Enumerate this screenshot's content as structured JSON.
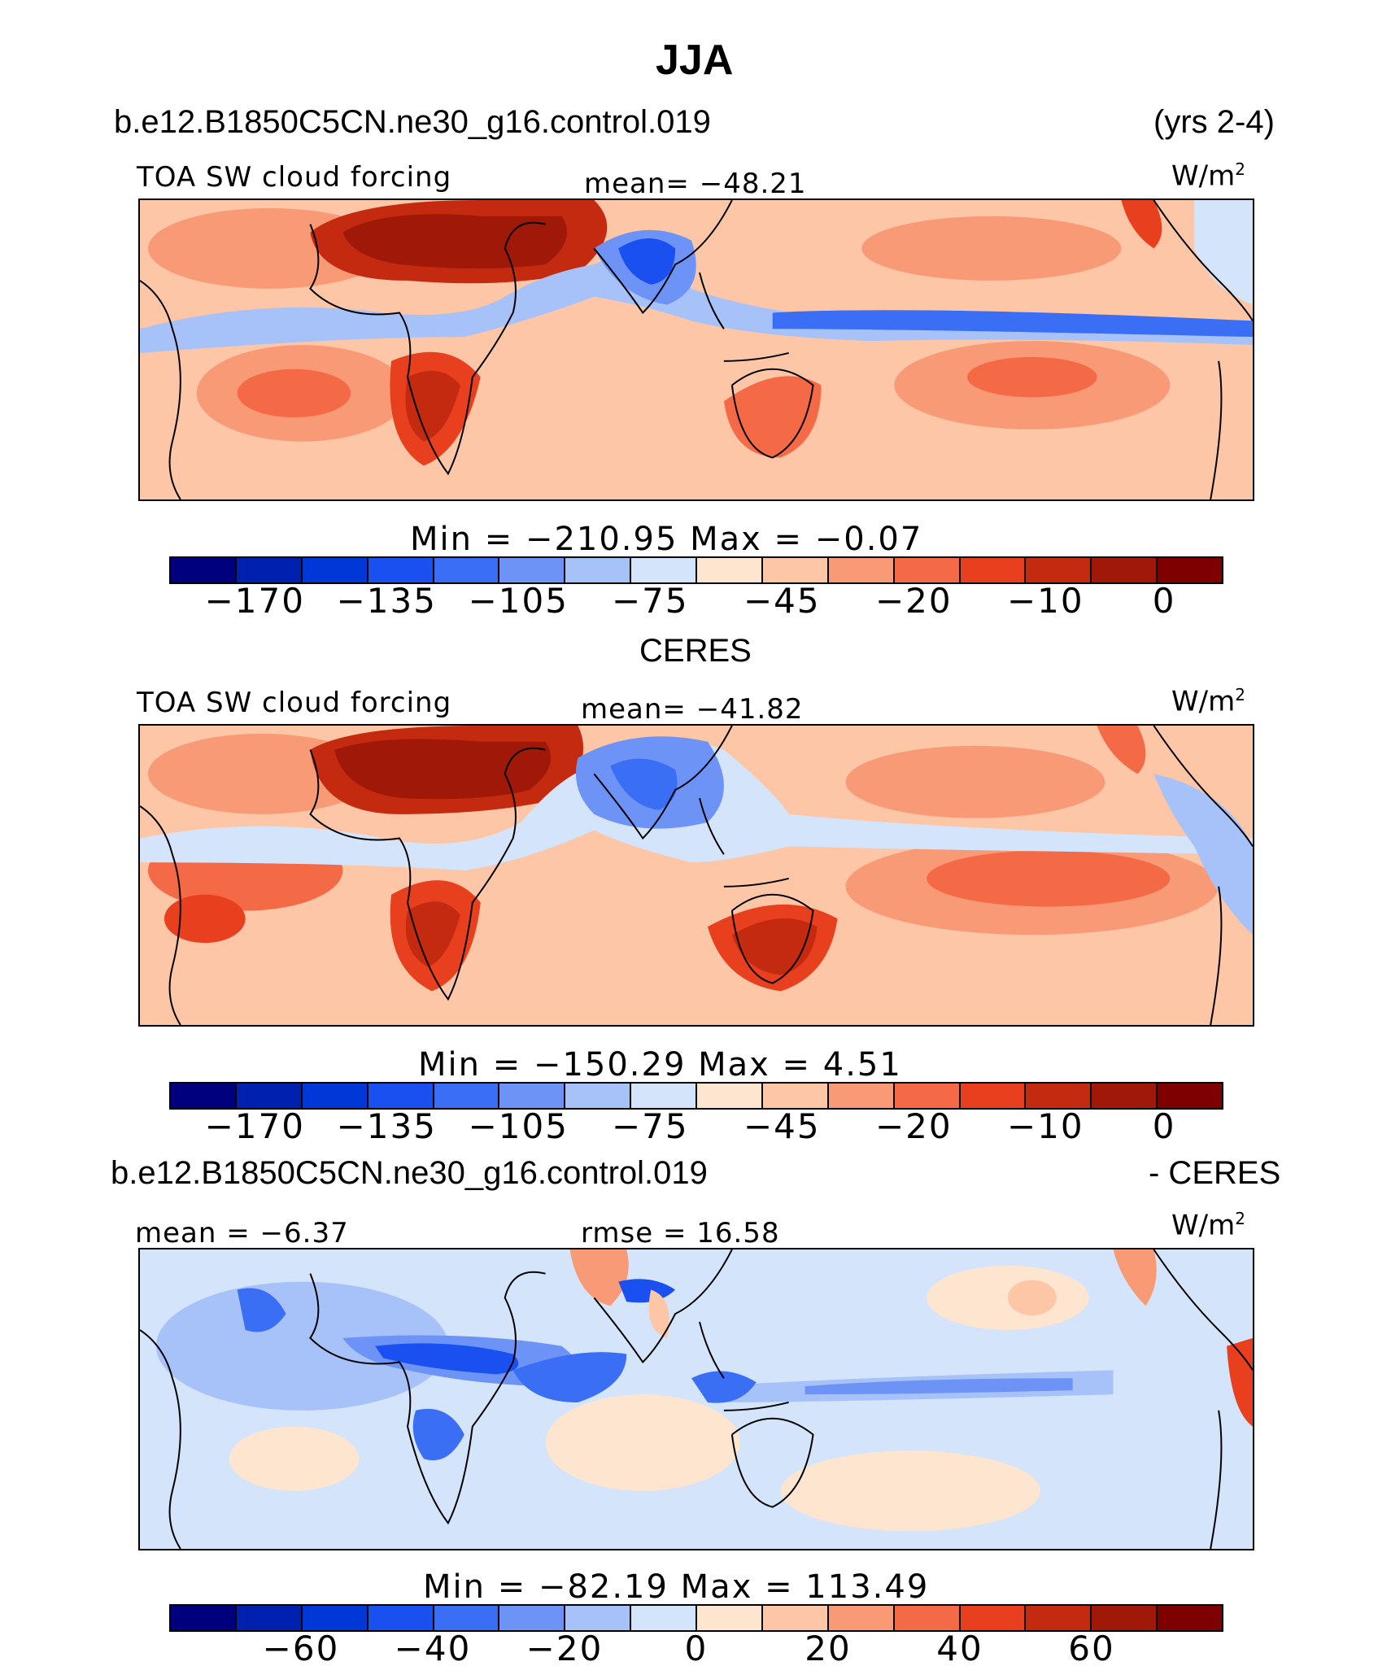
{
  "title": "JJA",
  "panel1": {
    "case": "b.e12.B1850C5CN.ne30_g16.control.019",
    "years": "(yrs 2-4)",
    "variable": "TOA SW cloud forcing",
    "mean_label": "mean= −48.21",
    "units": "W/m",
    "units_sup": "2",
    "minmax": "Min  =  −210.95  Max  =    −0.07"
  },
  "panel2": {
    "header": "CERES",
    "variable": "TOA SW cloud forcing",
    "mean_label": "mean= −41.82",
    "units": "W/m",
    "units_sup": "2",
    "minmax": "Min  =  −150.29  Max  =     4.51"
  },
  "panel3": {
    "case": "b.e12.B1850C5CN.ne30_g16.control.019",
    "minus_label": "- CERES",
    "mean_label": "mean =   −6.37",
    "rmse_label": "rmse =   16.58",
    "units": "W/m",
    "units_sup": "2",
    "minmax": "Min  =  −82.19  Max  =  113.49"
  },
  "colorbar_abs": {
    "colors": [
      "#00007f",
      "#0020b0",
      "#0038d8",
      "#1a50f0",
      "#3a6ef5",
      "#6c93f5",
      "#a6c2f8",
      "#d4e4fb",
      "#fde5d0",
      "#fcc6a7",
      "#f99a77",
      "#f46a47",
      "#e8401e",
      "#c42a10",
      "#a01808",
      "#7f0000"
    ],
    "ticks": [
      "−170",
      "−135",
      "−105",
      "−75",
      "−45",
      "−20",
      "−10",
      "0"
    ]
  },
  "colorbar_diff": {
    "colors": [
      "#00007f",
      "#0020b0",
      "#0038d8",
      "#1a50f0",
      "#3a6ef5",
      "#6c93f5",
      "#a6c2f8",
      "#d4e4fb",
      "#fde5d0",
      "#fcc6a7",
      "#f99a77",
      "#f46a47",
      "#e8401e",
      "#c42a10",
      "#a01808",
      "#7f0000"
    ],
    "ticks": [
      "−60",
      "−40",
      "−20",
      "0",
      "20",
      "40",
      "60"
    ]
  }
}
